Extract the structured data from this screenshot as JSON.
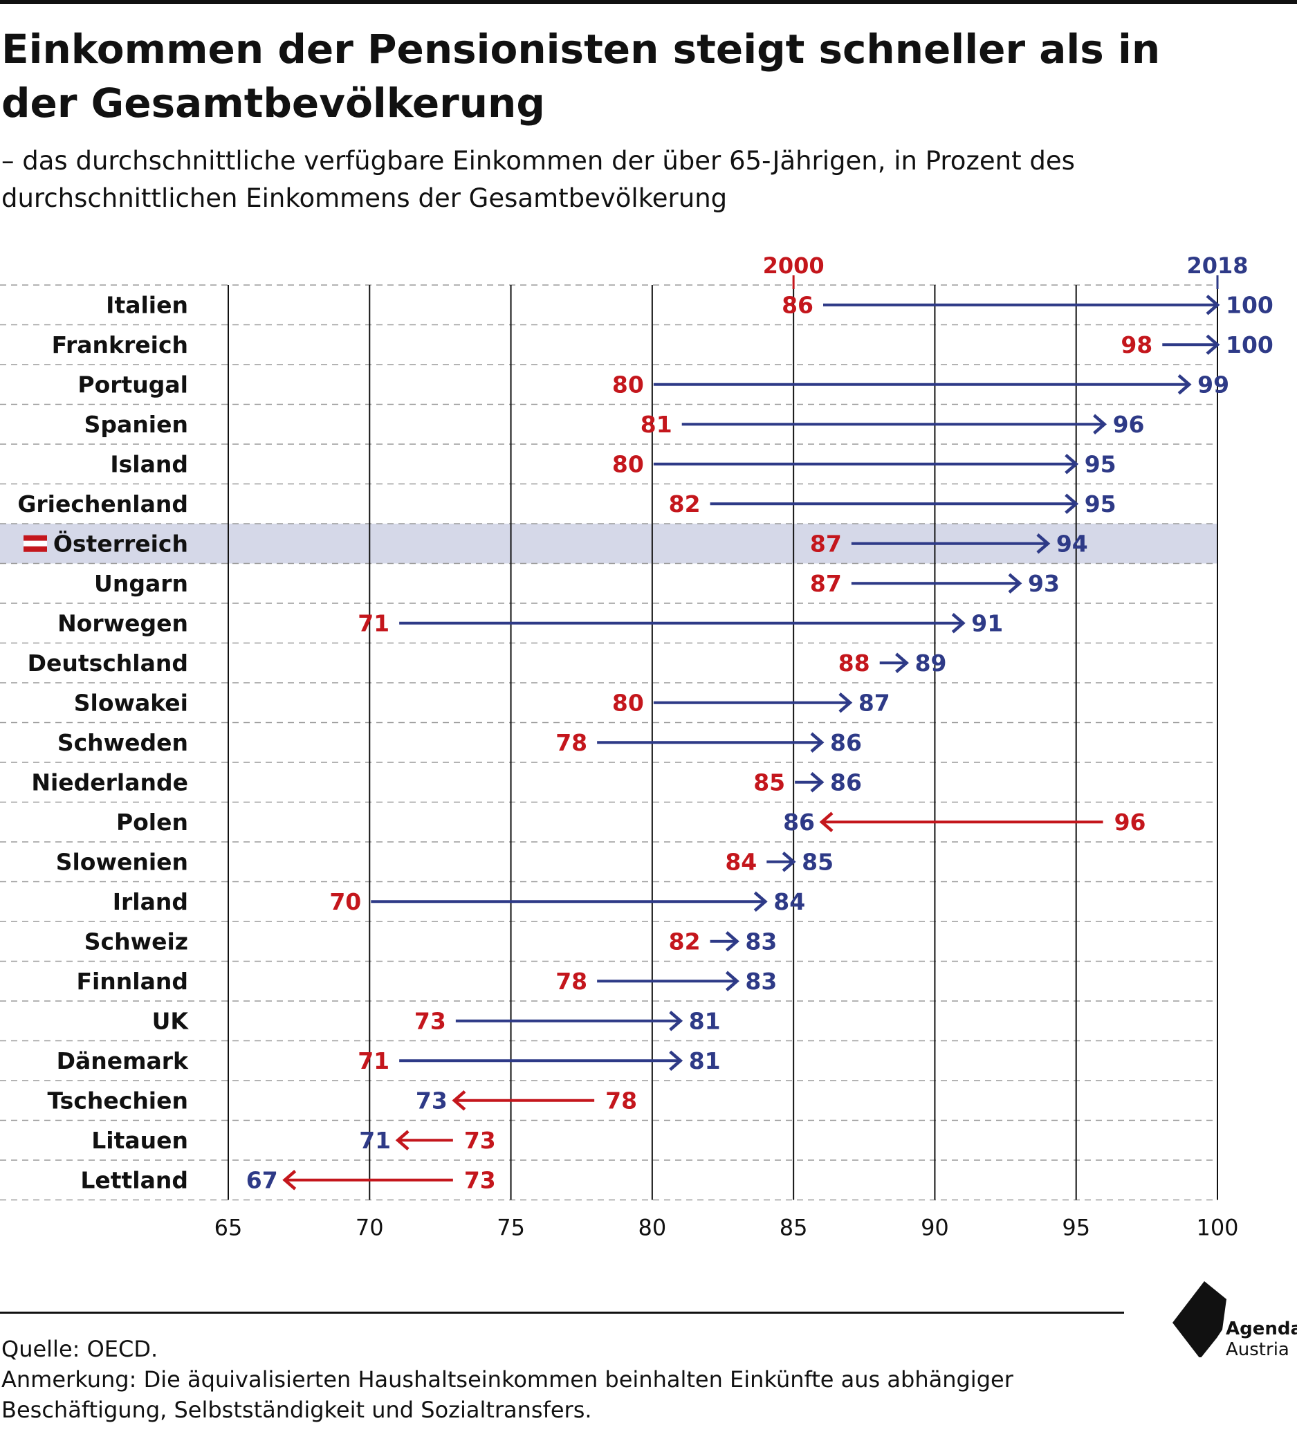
{
  "header": {
    "title": "Einkommen der Pensionisten steigt schneller als in der Gesamtbevölkerung",
    "subtitle": "– das durchschnittliche verfügbare Einkommen der über 65-Jährigen, in Prozent des durchschnittlichen Einkommens der Gesamtbevölkerung"
  },
  "colors": {
    "year_2000": "#c4161c",
    "year_2018": "#2e3a87",
    "highlight": "#d5d8e8",
    "grid": "#111111",
    "separator": "#9a9a9a"
  },
  "chart_data": {
    "type": "dumbbell-arrow",
    "series": [
      {
        "name": "2000",
        "color": "#c4161c"
      },
      {
        "name": "2018",
        "color": "#2e3a87"
      }
    ],
    "xlim": [
      65,
      100
    ],
    "x_ticks": [
      65,
      70,
      75,
      80,
      85,
      90,
      95,
      100
    ],
    "reference_lines": [
      {
        "label": "2000",
        "value": 85
      },
      {
        "label": "2018",
        "value": 100
      }
    ],
    "highlighted_category": "Österreich",
    "grid": true,
    "rows": [
      {
        "country": "Italien",
        "v2000": 86,
        "v2018": 100
      },
      {
        "country": "Frankreich",
        "v2000": 98,
        "v2018": 100
      },
      {
        "country": "Portugal",
        "v2000": 80,
        "v2018": 99
      },
      {
        "country": "Spanien",
        "v2000": 81,
        "v2018": 96
      },
      {
        "country": "Island",
        "v2000": 80,
        "v2018": 95
      },
      {
        "country": "Griechenland",
        "v2000": 82,
        "v2018": 95
      },
      {
        "country": "Österreich",
        "v2000": 87,
        "v2018": 94
      },
      {
        "country": "Ungarn",
        "v2000": 87,
        "v2018": 93
      },
      {
        "country": "Norwegen",
        "v2000": 71,
        "v2018": 91
      },
      {
        "country": "Deutschland",
        "v2000": 88,
        "v2018": 89
      },
      {
        "country": "Slowakei",
        "v2000": 80,
        "v2018": 87
      },
      {
        "country": "Schweden",
        "v2000": 78,
        "v2018": 86
      },
      {
        "country": "Niederlande",
        "v2000": 85,
        "v2018": 86
      },
      {
        "country": "Polen",
        "v2000": 96,
        "v2018": 86
      },
      {
        "country": "Slowenien",
        "v2000": 84,
        "v2018": 85
      },
      {
        "country": "Irland",
        "v2000": 70,
        "v2018": 84
      },
      {
        "country": "Schweiz",
        "v2000": 82,
        "v2018": 83
      },
      {
        "country": "Finnland",
        "v2000": 78,
        "v2018": 83
      },
      {
        "country": "UK",
        "v2000": 73,
        "v2018": 81
      },
      {
        "country": "Dänemark",
        "v2000": 71,
        "v2018": 81
      },
      {
        "country": "Tschechien",
        "v2000": 78,
        "v2018": 73
      },
      {
        "country": "Litauen",
        "v2000": 73,
        "v2018": 71
      },
      {
        "country": "Lettland",
        "v2000": 73,
        "v2018": 67
      }
    ]
  },
  "footer": {
    "source": "Quelle: OECD.",
    "note_line1": "Anmerkung: Die äquivalisierten Haushaltseinkommen beinhalten Einkünfte aus abhängiger",
    "note_line2": "Beschäftigung, Selbstständigkeit und Sozialtransfers."
  },
  "logo": {
    "line1": "Agenda",
    "line2": "Austria"
  }
}
